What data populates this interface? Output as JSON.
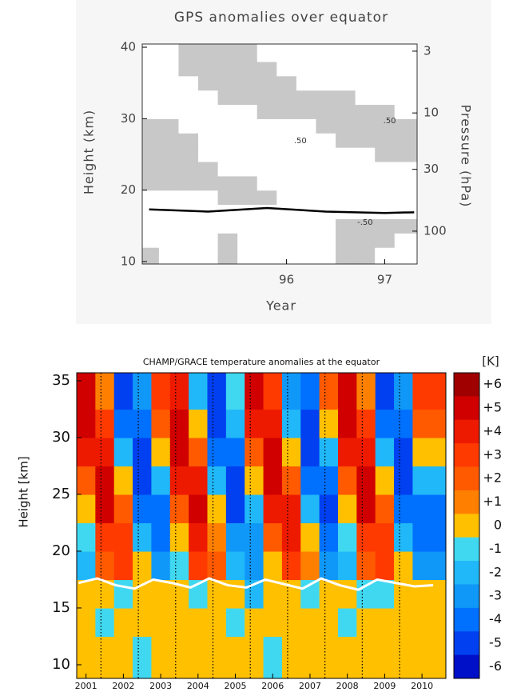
{
  "chart_data": [
    {
      "type": "contour",
      "title": "GPS anomalies over equator",
      "xlabel": "Year",
      "ylabel": "Height (km)",
      "y2label": "Pressure (hPa)",
      "xlim": [
        94.53,
        97.33
      ],
      "xticks": [
        96,
        97
      ],
      "ylim": [
        9.66,
        40.45
      ],
      "yticks": [
        10,
        20,
        30,
        40
      ],
      "y2lim": [
        189.7,
        2.61
      ],
      "y2log": true,
      "y2ticks": [
        3,
        10,
        30,
        100
      ],
      "shade_above": 0,
      "shade_color": "#c8c8c8",
      "x": [
        94.6,
        94.8,
        95.0,
        95.2,
        95.4,
        95.6,
        95.8,
        96.0,
        96.2,
        96.4,
        96.6,
        96.8,
        97.0,
        97.2
      ],
      "y": [
        11,
        13,
        15,
        17,
        19,
        21,
        23,
        25,
        27,
        29,
        31,
        33,
        35,
        37,
        39
      ],
      "values": [
        [
          1,
          -1,
          -1,
          -1,
          1,
          -1,
          -1,
          -1,
          -1,
          -1,
          1,
          1,
          -1,
          -1
        ],
        [
          -1,
          -1,
          -1,
          -1,
          1,
          -1,
          -1,
          -1,
          -1,
          -1,
          1,
          1,
          1,
          -1
        ],
        [
          -1,
          -1,
          -1,
          -1,
          -1,
          -1,
          -1,
          -1,
          -1,
          -1,
          1,
          1,
          1,
          1
        ],
        [
          -1,
          -1,
          -1,
          -1,
          -1,
          -1,
          -1,
          -1,
          -1,
          -1,
          -1,
          -1,
          -1,
          -1
        ],
        [
          -1,
          -1,
          -1,
          -1,
          1,
          1,
          1,
          -1,
          -1,
          -1,
          -1,
          -1,
          -1,
          -1
        ],
        [
          1,
          1,
          1,
          1,
          1,
          1,
          -1,
          -1,
          -1,
          -1,
          -1,
          -1,
          -1,
          -1
        ],
        [
          2,
          2,
          1,
          1,
          -1,
          -1,
          -1,
          -1,
          -1,
          -1,
          -1,
          -1,
          -1,
          -1
        ],
        [
          2,
          2,
          1,
          -1,
          -1,
          -1,
          -1,
          -1,
          -1,
          -1,
          -1,
          -1,
          1,
          1
        ],
        [
          2,
          1,
          1,
          -1,
          -1,
          -1,
          -1,
          -1,
          -1,
          -1,
          1,
          2,
          2,
          1
        ],
        [
          1,
          1,
          -1,
          -1,
          -1,
          -1,
          -1,
          -1,
          -1,
          1,
          2,
          3,
          2,
          1
        ],
        [
          -1,
          -1,
          -1,
          -1,
          -1,
          -1,
          1,
          2,
          2,
          2,
          2,
          2,
          1,
          -1
        ],
        [
          -1,
          -1,
          -1,
          -1,
          1,
          2,
          2,
          2,
          1,
          1,
          1,
          -1,
          -1,
          -1
        ],
        [
          -1,
          -1,
          -1,
          2,
          3,
          3,
          2,
          1,
          -1,
          -1,
          -1,
          -1,
          -1,
          -1
        ],
        [
          -1,
          -1,
          1,
          2,
          3,
          2,
          1,
          -1,
          -1,
          -1,
          -1,
          -1,
          -1,
          -1
        ],
        [
          -1,
          -1,
          1,
          2,
          2,
          1,
          -1,
          -1,
          -1,
          -1,
          -1,
          -1,
          -1,
          -1
        ]
      ],
      "lines": [
        {
          "color": "#000000",
          "x": [
            94.6,
            95.2,
            95.8,
            96.4,
            97.0,
            97.3
          ],
          "values": [
            17.3,
            17.0,
            17.5,
            17.0,
            16.8,
            16.9
          ]
        }
      ],
      "annotations": [
        {
          "text": ".50",
          "x": 96.14,
          "y": 26.9
        },
        {
          "text": ".50",
          "x": 97.05,
          "y": 29.7
        },
        {
          "text": "-.50",
          "x": 96.8,
          "y": 15.5
        }
      ]
    },
    {
      "type": "heatmap",
      "title": "CHAMP/GRACE temperature anomalies at the equator",
      "ylabel": "Height [km]",
      "xlim": [
        2000.75,
        2010.64
      ],
      "xticks": [
        2001,
        2002,
        2003,
        2004,
        2005,
        2006,
        2007,
        2008,
        2009,
        2010
      ],
      "ylim": [
        8.8,
        35.7
      ],
      "yticks": [
        10,
        15,
        20,
        25,
        30,
        35
      ],
      "vlines": [
        2001.4,
        2002.4,
        2003.4,
        2004.4,
        2005.4,
        2006.4,
        2007.4,
        2008.4,
        2009.4
      ],
      "x": [
        2001.0,
        2001.5,
        2002.0,
        2002.5,
        2003.0,
        2003.5,
        2004.0,
        2004.5,
        2005.0,
        2005.5,
        2006.0,
        2006.5,
        2007.0,
        2007.5,
        2008.0,
        2008.5,
        2009.0,
        2009.5,
        2010.0
      ],
      "y": [
        11.25,
        13.75,
        16.25,
        18.75,
        21.25,
        23.75,
        26.25,
        28.75,
        31.25,
        33.75
      ],
      "values": [
        [
          0,
          0,
          0,
          -1,
          0,
          0,
          0,
          0,
          0,
          0,
          -1,
          0,
          0,
          0,
          0,
          0,
          0,
          0,
          0
        ],
        [
          0,
          -1,
          0,
          0,
          0,
          0,
          0,
          0,
          -1,
          0,
          0,
          0,
          0,
          0,
          -1,
          0,
          0,
          0,
          0
        ],
        [
          0,
          0,
          -1,
          0,
          0,
          0,
          -1,
          0,
          0,
          -2,
          0,
          0,
          -1,
          0,
          0,
          -1,
          -1,
          0,
          0
        ],
        [
          -2,
          2,
          3,
          0,
          -3,
          -1,
          3,
          2,
          -2,
          -3,
          0,
          3,
          1,
          -3,
          -2,
          2,
          3,
          0,
          -3
        ],
        [
          -1,
          3,
          3,
          -2,
          -4,
          0,
          4,
          1,
          -3,
          -3,
          2,
          4,
          0,
          -4,
          -1,
          3,
          3,
          -2,
          -4
        ],
        [
          0,
          5,
          2,
          -4,
          -4,
          2,
          5,
          0,
          -5,
          -2,
          4,
          4,
          -2,
          -5,
          0,
          5,
          2,
          -4,
          -4
        ],
        [
          2,
          5,
          0,
          -5,
          -2,
          4,
          4,
          -2,
          -5,
          0,
          5,
          2,
          -4,
          -4,
          2,
          5,
          0,
          -5,
          -2
        ],
        [
          4,
          4,
          -2,
          -5,
          0,
          5,
          2,
          -4,
          -4,
          2,
          5,
          0,
          -5,
          -2,
          4,
          4,
          -2,
          -5,
          0
        ],
        [
          5,
          3,
          -4,
          -4,
          2,
          5,
          0,
          -5,
          -2,
          4,
          4,
          -2,
          -5,
          0,
          5,
          3,
          -4,
          -4,
          2
        ],
        [
          5,
          1,
          -5,
          -3,
          3,
          4,
          -2,
          -5,
          -1,
          5,
          3,
          -3,
          -4,
          2,
          5,
          1,
          -5,
          -3,
          3
        ]
      ],
      "lines": [
        {
          "color": "#ffffff",
          "x": [
            2000.8,
            2001.3,
            2001.8,
            2002.3,
            2002.8,
            2003.3,
            2003.8,
            2004.3,
            2004.8,
            2005.3,
            2005.8,
            2006.3,
            2006.8,
            2007.3,
            2007.8,
            2008.3,
            2008.8,
            2009.3,
            2009.8,
            2010.3
          ],
          "values": [
            17.2,
            17.6,
            17.0,
            16.7,
            17.5,
            17.2,
            16.8,
            17.6,
            17.0,
            16.8,
            17.5,
            17.1,
            16.7,
            17.6,
            17.0,
            16.6,
            17.5,
            17.2,
            16.9,
            17.0
          ]
        }
      ],
      "colorbar": {
        "label": "[K]",
        "ticks": [
          {
            "value": 6,
            "label": "+6"
          },
          {
            "value": 5,
            "label": "+5"
          },
          {
            "value": 4,
            "label": "+4"
          },
          {
            "value": 3,
            "label": "+3"
          },
          {
            "value": 2,
            "label": "+2"
          },
          {
            "value": 1,
            "label": "+1"
          },
          0,
          -1,
          -2,
          -3,
          -4,
          -5,
          -6
        ],
        "colors": [
          "#a00000",
          "#d00000",
          "#ee1a00",
          "#ff3a00",
          "#ff5a00",
          "#ff8000",
          "#ffc000",
          "#40d8f0",
          "#20b8f8",
          "#1098f8",
          "#0070ff",
          "#0040f0",
          "#0010c8"
        ]
      }
    }
  ]
}
